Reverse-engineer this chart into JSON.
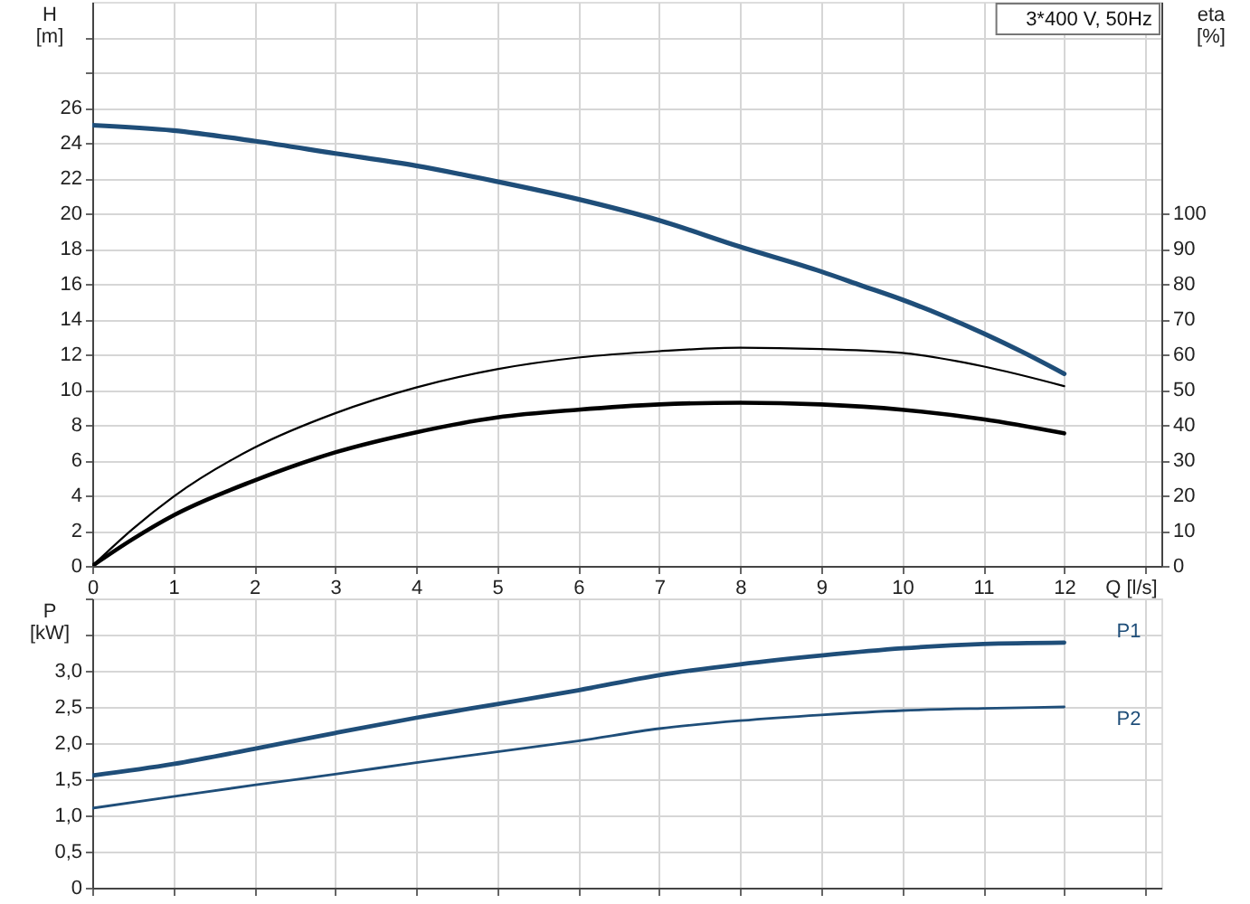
{
  "chart_data": [
    {
      "type": "line",
      "title": "3*400 V, 50Hz",
      "xlabel": "Q [l/s]",
      "ylabel": "H [m]",
      "y2label": "eta [%]",
      "xlim": [
        0,
        13.2
      ],
      "xticks": [
        0,
        1,
        2,
        3,
        4,
        5,
        6,
        7,
        8,
        9,
        10,
        11,
        12,
        {
          "value": 13,
          "label": null
        }
      ],
      "ylim": [
        0,
        32
      ],
      "yticks": [
        0,
        2,
        4,
        6,
        8,
        10,
        12,
        14,
        16,
        18,
        20,
        22,
        24,
        26,
        {
          "value": 28,
          "label": null
        },
        {
          "value": 30,
          "label": null
        }
      ],
      "y2lim": [
        0,
        160
      ],
      "y2ticks": [
        0,
        10,
        20,
        30,
        40,
        50,
        60,
        70,
        80,
        90,
        100
      ],
      "grid": true,
      "x": [
        0,
        0.5,
        1,
        2,
        3,
        4,
        5,
        6,
        7,
        8,
        9,
        10,
        11,
        12
      ],
      "series": [
        {
          "color": "#1f4e79",
          "x": [
            0,
            1,
            2,
            3,
            4,
            5,
            6,
            7,
            8,
            9,
            9.5,
            10,
            10.5,
            11,
            11.5,
            12
          ],
          "values": [
            25.0,
            24.7,
            24.1,
            23.4,
            22.7,
            21.8,
            20.8,
            19.6,
            18.1,
            16.7,
            15.9,
            15.1,
            14.2,
            13.2,
            12.1,
            10.9
          ]
        },
        {
          "color": "#000000",
          "axis": "y2",
          "values": [
            0,
            10.5,
            19.6,
            33.5,
            43.3,
            50.6,
            55.8,
            59.1,
            60.9,
            61.9,
            61.5,
            60.4,
            56.6,
            51.0
          ]
        },
        {
          "color": "#000000",
          "axis": "y2",
          "values": [
            0,
            7.6,
            14.3,
            24.2,
            32.2,
            37.9,
            42.1,
            44.3,
            45.8,
            46.3,
            45.8,
            44.3,
            41.6,
            37.6
          ]
        }
      ]
    },
    {
      "type": "line",
      "ylabel": "P [kW]",
      "xlim": [
        0,
        13.2
      ],
      "xticks": [
        0,
        1,
        2,
        3,
        4,
        5,
        6,
        7,
        8,
        9,
        10,
        11,
        12,
        {
          "value": 13,
          "label": null
        }
      ],
      "ylim": [
        0,
        4
      ],
      "yticks": [
        0,
        {
          "value": 0.5,
          "label": "0,5"
        },
        {
          "value": 1,
          "label": "1,0"
        },
        {
          "value": 1.5,
          "label": "1,5"
        },
        {
          "value": 2,
          "label": "2,0"
        },
        {
          "value": 2.5,
          "label": "2,5"
        },
        {
          "value": 3,
          "label": "3,0"
        },
        {
          "value": 3.5,
          "label": null
        },
        {
          "value": 4,
          "label": null
        }
      ],
      "tick_labels": "y",
      "grid": true,
      "x": [
        0,
        1,
        2,
        3,
        4,
        5,
        6,
        7,
        8,
        9,
        10,
        11,
        12
      ],
      "series": [
        {
          "name": "P1",
          "color": "#1f4e79",
          "values": [
            1.55,
            1.71,
            1.92,
            2.14,
            2.35,
            2.54,
            2.73,
            2.94,
            3.09,
            3.21,
            3.31,
            3.37,
            3.39
          ]
        },
        {
          "name": "P2",
          "color": "#1f4e79",
          "values": [
            1.1,
            1.26,
            1.42,
            1.57,
            1.73,
            1.88,
            2.03,
            2.2,
            2.31,
            2.39,
            2.45,
            2.48,
            2.5
          ]
        }
      ]
    }
  ]
}
